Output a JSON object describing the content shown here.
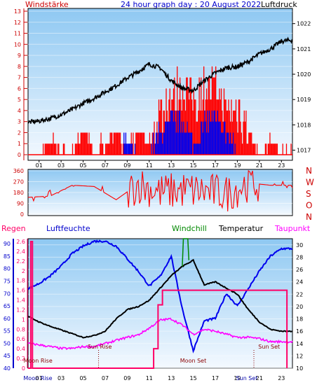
{
  "header": {
    "left": "Windstärke",
    "title": "24 hour graph day : 20 August 2022",
    "right": "Luftdruck"
  },
  "colors": {
    "bg_top": "#8ec8f2",
    "bg_bottom": "#f4f9ff",
    "wind": "#ff0000",
    "gust": "#0000ee",
    "pressure": "#000000",
    "humidity": "#0000ee",
    "temperature": "#000000",
    "dewpoint": "#ff00ff",
    "rain": "#ff0066",
    "windchill": "#008800",
    "left_axis": "#cc0000",
    "humidity_axis": "#0000cc",
    "rain_axis": "#ff0066"
  },
  "x_ticks": [
    "01",
    "03",
    "05",
    "07",
    "09",
    "11",
    "13",
    "15",
    "17",
    "19",
    "21",
    "23"
  ],
  "chart_data": [
    {
      "type": "line",
      "id": "wind-pressure",
      "left_axis": {
        "label": "Windstärke",
        "ticks": [
          0,
          1,
          2,
          3,
          4,
          5,
          6,
          7,
          8,
          9,
          10,
          11,
          12,
          13
        ],
        "ylim": [
          0,
          13
        ]
      },
      "right_axis": {
        "label": "Luftdruck",
        "ticks": [
          1017,
          1018,
          1019,
          1020,
          1021,
          1022
        ],
        "ylim": [
          1016.6,
          1022.6
        ]
      },
      "x": [
        0,
        1,
        2,
        3,
        4,
        5,
        6,
        7,
        8,
        9,
        10,
        11,
        12,
        13,
        14,
        15,
        16,
        17,
        18,
        19,
        20,
        21,
        22,
        23,
        24
      ],
      "series": [
        {
          "name": "Luftdruck",
          "axis": "right",
          "values": [
            1018.1,
            1018.15,
            1018.25,
            1018.4,
            1018.6,
            1018.85,
            1019.05,
            1019.3,
            1019.55,
            1019.85,
            1020.1,
            1020.4,
            1020.25,
            1019.75,
            1019.45,
            1019.35,
            1019.75,
            1020.05,
            1020.25,
            1020.3,
            1020.5,
            1020.8,
            1021.0,
            1021.3,
            1021.35
          ]
        },
        {
          "name": "Wind",
          "axis": "left",
          "values": [
            0,
            0,
            1,
            0,
            0,
            2,
            0,
            1,
            2,
            0,
            2,
            1,
            4,
            5,
            6,
            5,
            6,
            6,
            4,
            4,
            2,
            0,
            1,
            0,
            0
          ]
        },
        {
          "name": "Böen",
          "axis": "left",
          "values": [
            0,
            0,
            0,
            0,
            0,
            0,
            0,
            0,
            0,
            1,
            0,
            0,
            2,
            3,
            3,
            1,
            3,
            3,
            2,
            0,
            0,
            0,
            0,
            0,
            0
          ]
        }
      ]
    },
    {
      "type": "line",
      "id": "wind-direction",
      "y_ticks": [
        0,
        90,
        180,
        270,
        360
      ],
      "ylim": [
        0,
        360
      ],
      "compass": [
        "N",
        "W",
        "S",
        "O",
        "N"
      ],
      "x": [
        0,
        2,
        4,
        6,
        8,
        10,
        12,
        14,
        16,
        18,
        20,
        22,
        24
      ],
      "series": [
        {
          "name": "Windrichtung",
          "values": [
            140,
            150,
            240,
            230,
            120,
            250,
            180,
            200,
            190,
            170,
            260,
            240,
            240
          ]
        }
      ]
    },
    {
      "type": "line",
      "id": "temp-humidity",
      "left_labels": [
        "Regen",
        "Luftfeuchte"
      ],
      "middle_labels": [
        "Windchill",
        "Temperatur"
      ],
      "right_label": "Taupunkt",
      "rain_axis": {
        "ticks": [
          0,
          0.2,
          0.4,
          0.6,
          0.8,
          1,
          1.2,
          1.4,
          1.6,
          1.8,
          2,
          2.2,
          2.4,
          2.6
        ],
        "ylim": [
          0,
          2.6
        ]
      },
      "humidity_axis": {
        "ticks": [
          40,
          45,
          50,
          55,
          60,
          65,
          70,
          75,
          80,
          85,
          90
        ],
        "ylim": [
          40,
          92
        ]
      },
      "temp_axis": {
        "ticks": [
          10,
          12,
          14,
          16,
          18,
          20,
          22,
          24,
          26,
          28,
          30
        ],
        "ylim": [
          10,
          31
        ]
      },
      "x": [
        0,
        1,
        2,
        3,
        4,
        5,
        6,
        7,
        8,
        9,
        10,
        11,
        12,
        13,
        14,
        15,
        16,
        17,
        18,
        19,
        20,
        21,
        22,
        23,
        24
      ],
      "series": [
        {
          "name": "Luftfeuchte",
          "axis": "humidity",
          "values": [
            72,
            74,
            77,
            81,
            86,
            89,
            91,
            91,
            89,
            84,
            79,
            73,
            77,
            85,
            64,
            47,
            59,
            60,
            70,
            65,
            72,
            79,
            85,
            88,
            88
          ]
        },
        {
          "name": "Temperatur",
          "axis": "temp",
          "values": [
            18.4,
            17.5,
            16.8,
            16.2,
            15.6,
            15.0,
            15.3,
            16.0,
            18.0,
            19.5,
            20.0,
            21.0,
            23.0,
            25.0,
            26.5,
            27.5,
            23.5,
            24.0,
            23.0,
            22.0,
            19.5,
            17.5,
            16.3,
            16.0,
            16.0
          ]
        },
        {
          "name": "Taupunkt",
          "axis": "temp",
          "values": [
            14.0,
            13.8,
            13.5,
            13.2,
            13.2,
            13.5,
            13.5,
            14.0,
            14.5,
            15.0,
            15.4,
            16.5,
            17.8,
            18.0,
            17.0,
            15.5,
            16.3,
            16.0,
            15.5,
            15.0,
            15.0,
            14.8,
            14.3,
            14.3,
            14.3
          ]
        },
        {
          "name": "Regen",
          "axis": "rain",
          "values": [
            0,
            0,
            0,
            0,
            0,
            0,
            0,
            0,
            0,
            0,
            0,
            0,
            1.6,
            1.6,
            1.6,
            1.6,
            1.6,
            1.6,
            1.6,
            1.6,
            1.6,
            1.6,
            1.6,
            1.6,
            1.6
          ]
        },
        {
          "name": "Windchill",
          "axis": "temp",
          "values": [
            null,
            null,
            null,
            null,
            null,
            null,
            null,
            null,
            null,
            null,
            null,
            null,
            null,
            null,
            30.5,
            30.5,
            null,
            null,
            null,
            null,
            null,
            null,
            null,
            null,
            null
          ]
        }
      ],
      "annotations": [
        "Moon Rise",
        "Sun Rise",
        "Moon Set",
        "Sun Set"
      ],
      "bottom_labels": [
        "Moon Rise",
        "01",
        "03",
        "05",
        "07",
        "09",
        "11",
        "13",
        "15",
        "17",
        "19",
        "Sun Set",
        "21",
        "23"
      ]
    }
  ]
}
